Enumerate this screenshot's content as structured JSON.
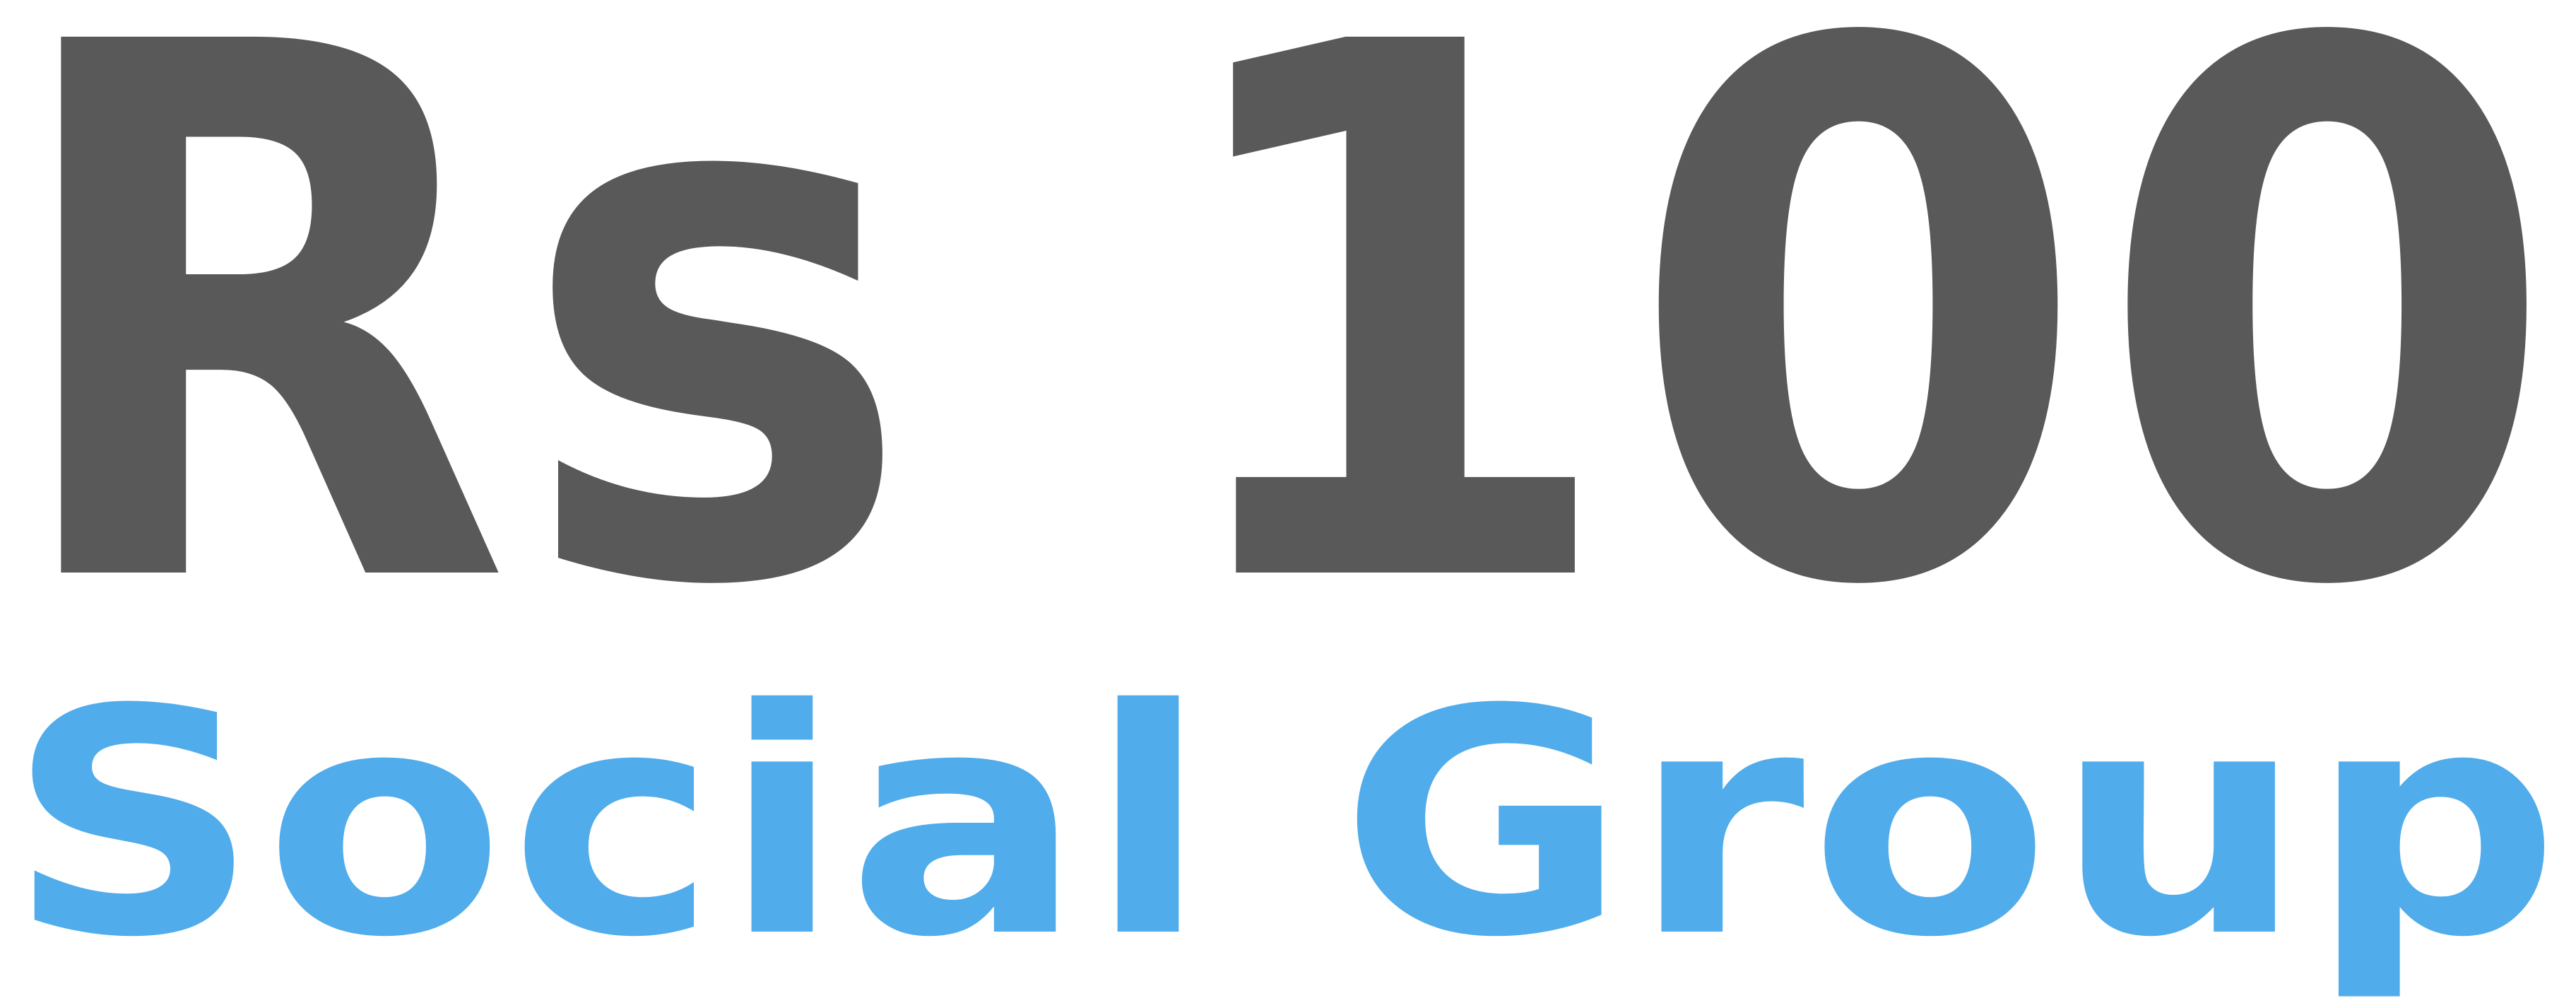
{
  "logo": {
    "line1": "Rs 100",
    "line2": "Social Group",
    "colors": {
      "line1": "#595959",
      "line2": "#51aceb",
      "background": "#ffffff"
    }
  }
}
